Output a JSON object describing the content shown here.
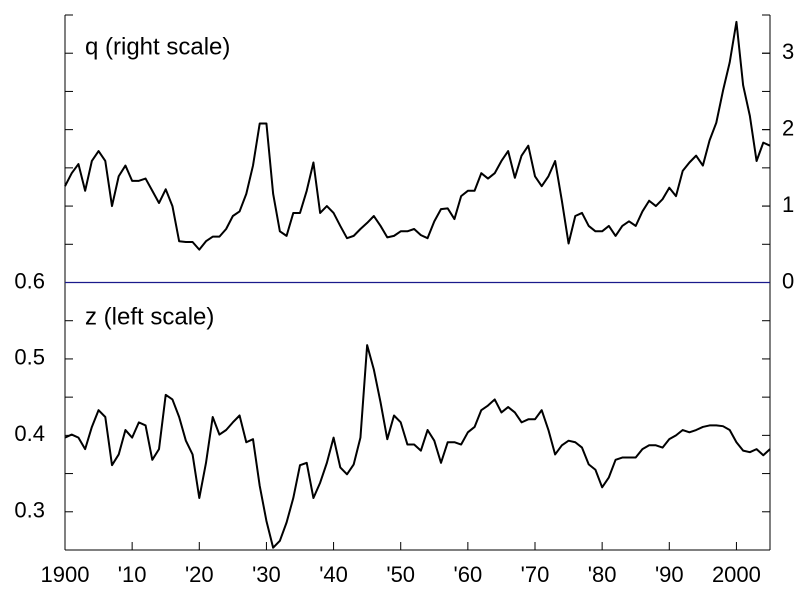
{
  "chart_data": {
    "type": "line",
    "annotations": [
      "q (right scale)",
      "z (left scale)"
    ],
    "x": [
      1900,
      1901,
      1902,
      1903,
      1904,
      1905,
      1906,
      1907,
      1908,
      1909,
      1910,
      1911,
      1912,
      1913,
      1914,
      1915,
      1916,
      1917,
      1918,
      1919,
      1920,
      1921,
      1922,
      1923,
      1924,
      1925,
      1926,
      1927,
      1928,
      1929,
      1930,
      1931,
      1932,
      1933,
      1934,
      1935,
      1936,
      1937,
      1938,
      1939,
      1940,
      1941,
      1942,
      1943,
      1944,
      1945,
      1946,
      1947,
      1948,
      1949,
      1950,
      1951,
      1952,
      1953,
      1954,
      1955,
      1956,
      1957,
      1958,
      1959,
      1960,
      1961,
      1962,
      1963,
      1964,
      1965,
      1966,
      1967,
      1968,
      1969,
      1970,
      1971,
      1972,
      1973,
      1974,
      1975,
      1976,
      1977,
      1978,
      1979,
      1980,
      1981,
      1982,
      1983,
      1984,
      1985,
      1986,
      1987,
      1988,
      1989,
      1990,
      1991,
      1992,
      1993,
      1994,
      1995,
      1996,
      1997,
      1998,
      1999,
      2000,
      2001,
      2002,
      2003,
      2004,
      2005
    ],
    "series": [
      {
        "name": "q",
        "color": "#000000",
        "axis": "y2",
        "values": [
          1.26,
          1.43,
          1.55,
          1.2,
          1.59,
          1.72,
          1.59,
          1.0,
          1.39,
          1.53,
          1.33,
          1.33,
          1.36,
          1.2,
          1.04,
          1.22,
          1.0,
          0.54,
          0.53,
          0.53,
          0.43,
          0.54,
          0.6,
          0.6,
          0.7,
          0.87,
          0.93,
          1.16,
          1.53,
          2.08,
          2.08,
          1.16,
          0.67,
          0.61,
          0.91,
          0.91,
          1.2,
          1.57,
          0.91,
          1.0,
          0.91,
          0.74,
          0.58,
          0.61,
          0.7,
          0.78,
          0.87,
          0.74,
          0.59,
          0.61,
          0.67,
          0.67,
          0.7,
          0.62,
          0.58,
          0.8,
          0.96,
          0.97,
          0.83,
          1.13,
          1.2,
          1.2,
          1.43,
          1.36,
          1.43,
          1.59,
          1.72,
          1.37,
          1.66,
          1.79,
          1.39,
          1.26,
          1.39,
          1.59,
          1.07,
          0.51,
          0.87,
          0.91,
          0.74,
          0.67,
          0.67,
          0.74,
          0.61,
          0.74,
          0.8,
          0.74,
          0.93,
          1.07,
          1.0,
          1.09,
          1.24,
          1.13,
          1.46,
          1.57,
          1.66,
          1.53,
          1.86,
          2.09,
          2.51,
          2.88,
          3.41,
          2.58,
          2.18,
          1.59,
          1.83,
          1.79
        ]
      },
      {
        "name": "z",
        "color": "#000000",
        "axis": "y",
        "values": [
          0.397,
          0.401,
          0.397,
          0.382,
          0.411,
          0.433,
          0.424,
          0.361,
          0.375,
          0.407,
          0.397,
          0.417,
          0.413,
          0.368,
          0.382,
          0.453,
          0.447,
          0.424,
          0.393,
          0.375,
          0.318,
          0.364,
          0.424,
          0.401,
          0.407,
          0.417,
          0.426,
          0.391,
          0.395,
          0.334,
          0.288,
          0.253,
          0.262,
          0.286,
          0.318,
          0.361,
          0.364,
          0.318,
          0.338,
          0.364,
          0.397,
          0.358,
          0.349,
          0.362,
          0.397,
          0.518,
          0.486,
          0.443,
          0.395,
          0.426,
          0.417,
          0.388,
          0.388,
          0.38,
          0.407,
          0.393,
          0.364,
          0.391,
          0.391,
          0.388,
          0.404,
          0.411,
          0.433,
          0.439,
          0.447,
          0.43,
          0.437,
          0.43,
          0.417,
          0.421,
          0.421,
          0.433,
          0.407,
          0.375,
          0.387,
          0.393,
          0.391,
          0.384,
          0.362,
          0.355,
          0.332,
          0.345,
          0.368,
          0.371,
          0.371,
          0.371,
          0.382,
          0.387,
          0.387,
          0.384,
          0.395,
          0.4,
          0.407,
          0.404,
          0.407,
          0.411,
          0.413,
          0.413,
          0.412,
          0.407,
          0.391,
          0.38,
          0.378,
          0.382,
          0.374,
          0.382
        ]
      }
    ],
    "xlim": [
      1900,
      2005
    ],
    "xticks": [
      1900,
      {
        "value": 1910,
        "label": "'10"
      },
      {
        "value": 1920,
        "label": "'20"
      },
      {
        "value": 1930,
        "label": "'30"
      },
      {
        "value": 1940,
        "label": "'40"
      },
      {
        "value": 1950,
        "label": "'50"
      },
      {
        "value": 1960,
        "label": "'60"
      },
      {
        "value": 1970,
        "label": "'70"
      },
      {
        "value": 1980,
        "label": "'80"
      },
      {
        "value": 1990,
        "label": "'90"
      },
      2000
    ],
    "ylim": [
      0.25,
      0.95
    ],
    "yticks": [
      0.3,
      0.4,
      0.5,
      0.6
    ],
    "yminor_ticks": [
      0.3,
      0.35,
      0.4,
      0.45,
      0.5,
      0.55,
      0.6,
      0.65,
      0.7,
      0.75,
      0.8,
      0.85,
      0.9,
      0.95
    ],
    "y2lim": [
      -3.5,
      3.5
    ],
    "y2ticks": [
      0,
      1,
      2,
      3
    ],
    "zero_line_color": "#1a1a8c"
  }
}
